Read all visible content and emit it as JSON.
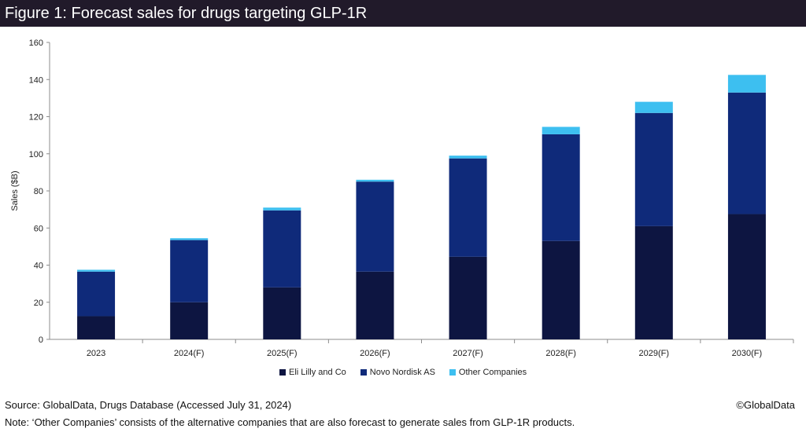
{
  "figure": {
    "title": "Figure 1: Forecast sales for drugs targeting GLP-1R",
    "source": "Source: GlobalData, Drugs Database (Accessed July 31, 2024)",
    "copyright": "©GlobalData",
    "note": "Note: ‘Other Companies’ consists of the alternative companies that are also forecast to generate sales from GLP-1R products."
  },
  "chart_data": {
    "type": "bar",
    "stacked": true,
    "title": "",
    "xlabel": "",
    "ylabel": "Sales ($B)",
    "ylim": [
      0,
      160
    ],
    "yticks": [
      0,
      20,
      40,
      60,
      80,
      100,
      120,
      140,
      160
    ],
    "grid": false,
    "legend_position": "bottom",
    "categories": [
      "2023",
      "2024(F)",
      "2025(F)",
      "2026(F)",
      "2027(F)",
      "2028(F)",
      "2029(F)",
      "2030(F)"
    ],
    "series": [
      {
        "name": "Eli Lilly and Co",
        "color": "#0d1541",
        "values": [
          12.5,
          20,
          28,
          36.5,
          44.5,
          53,
          61,
          67.5
        ]
      },
      {
        "name": "Novo Nordisk AS",
        "color": "#0f2a7a",
        "values": [
          24,
          33.5,
          41.5,
          48.5,
          53,
          57.5,
          61,
          65.5
        ]
      },
      {
        "name": "Other Companies",
        "color": "#3dbff0",
        "values": [
          1,
          1,
          1.5,
          1,
          1.5,
          4,
          6,
          9.5
        ]
      }
    ]
  }
}
